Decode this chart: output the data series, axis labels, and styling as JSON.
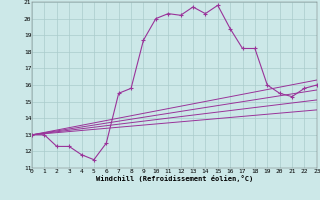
{
  "main_x": [
    0,
    1,
    2,
    3,
    4,
    5,
    6,
    7,
    8,
    9,
    10,
    11,
    12,
    13,
    14,
    15,
    16,
    17,
    18,
    19,
    20,
    21,
    22,
    23
  ],
  "main_y": [
    13,
    13,
    12.3,
    12.3,
    11.8,
    11.5,
    12.5,
    15.5,
    15.8,
    18.7,
    20,
    20.3,
    20.2,
    20.7,
    20.3,
    20.8,
    19.4,
    18.2,
    18.2,
    16,
    15.5,
    15.3,
    15.8,
    16.0
  ],
  "ref_lines": [
    {
      "x": [
        0,
        23
      ],
      "y": [
        13.0,
        16.3
      ]
    },
    {
      "x": [
        0,
        23
      ],
      "y": [
        13.0,
        15.7
      ]
    },
    {
      "x": [
        0,
        23
      ],
      "y": [
        13.0,
        15.1
      ]
    },
    {
      "x": [
        0,
        23
      ],
      "y": [
        13.0,
        14.5
      ]
    }
  ],
  "line_color": "#993399",
  "bg_color": "#cce8e8",
  "grid_color": "#aacccc",
  "xlabel": "Windchill (Refroidissement éolien,°C)",
  "ylim": [
    11,
    21
  ],
  "xlim": [
    0,
    23
  ],
  "yticks": [
    11,
    12,
    13,
    14,
    15,
    16,
    17,
    18,
    19,
    20,
    21
  ],
  "xticks": [
    0,
    1,
    2,
    3,
    4,
    5,
    6,
    7,
    8,
    9,
    10,
    11,
    12,
    13,
    14,
    15,
    16,
    17,
    18,
    19,
    20,
    21,
    22,
    23
  ]
}
